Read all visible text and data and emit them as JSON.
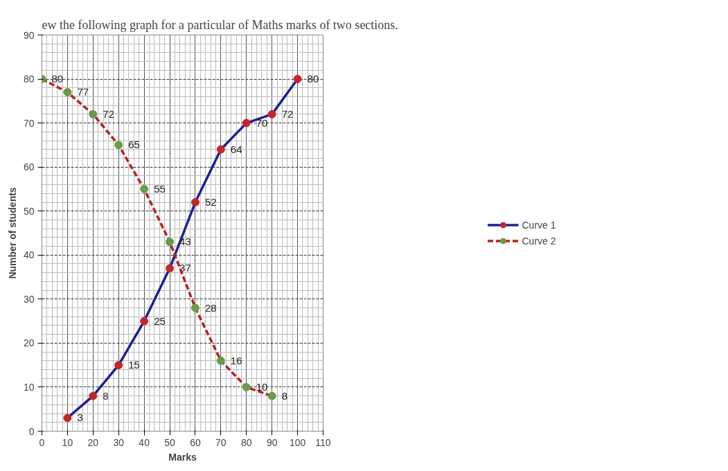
{
  "chart_data": {
    "type": "line",
    "title": "ew the following graph for a particular of Maths marks of two sections.",
    "xlabel": "Marks",
    "ylabel": "Number of students",
    "xlim": [
      0,
      110
    ],
    "ylim": [
      0,
      90
    ],
    "xticks": [
      0,
      10,
      20,
      30,
      40,
      50,
      60,
      70,
      80,
      90,
      100,
      110
    ],
    "yticks": [
      0,
      10,
      20,
      30,
      40,
      50,
      60,
      70,
      80,
      90
    ],
    "grid": true,
    "legend": "right",
    "marker": "circle",
    "data_labels": true,
    "series": [
      {
        "name": "Curve 1",
        "color": "#1f1f8f",
        "colors": [
          "#c0282d",
          "#c0282d",
          "#c0282d",
          "#c0282d",
          "#c0282d",
          "#c0282d",
          "#c0282d",
          "#c0282d",
          "#c0282d",
          "#c0282d"
        ],
        "line_style": "solid",
        "x": [
          10,
          20,
          30,
          40,
          50,
          60,
          70,
          80,
          90,
          100
        ],
        "values": [
          3,
          8,
          15,
          25,
          37,
          52,
          64,
          70,
          72,
          80
        ]
      },
      {
        "name": "Curve 2",
        "color": "#b22222",
        "colors": [
          "#6a9a4a",
          "#6a9a4a",
          "#6a9a4a",
          "#6a9a4a",
          "#6a9a4a",
          "#6a9a4a",
          "#6a9a4a",
          "#6a9a4a",
          "#6a9a4a",
          "#6a9a4a"
        ],
        "line_style": "dashed",
        "x": [
          0,
          10,
          20,
          30,
          40,
          50,
          60,
          70,
          80,
          90
        ],
        "values": [
          80,
          77,
          72,
          65,
          55,
          43,
          28,
          16,
          10,
          8
        ]
      }
    ]
  }
}
